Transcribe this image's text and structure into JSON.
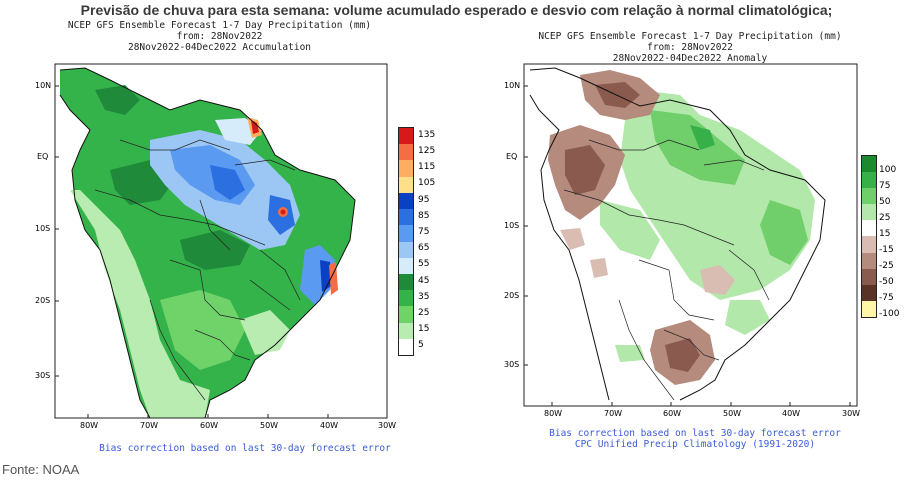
{
  "headline": "Previsão de chuva para esta semana: volume acumulado esperado e desvio com relação à normal climatológica;",
  "source": "Fonte: NOAA",
  "left_map": {
    "title_line1": "NCEP GFS Ensemble Forecast 1-7 Day Precipitation (mm)",
    "title_line2": "from: 28Nov2022",
    "title_line3": "28Nov2022-04Dec2022 Accumulation",
    "lat_labels": [
      "10N",
      "EQ",
      "10S",
      "20S",
      "30S"
    ],
    "lon_labels": [
      "80W",
      "70W",
      "60W",
      "50W",
      "40W",
      "30W"
    ],
    "legend_labels": [
      "135",
      "125",
      "115",
      "105",
      "95",
      "85",
      "75",
      "65",
      "55",
      "45",
      "35",
      "25",
      "15",
      "5"
    ],
    "legend_colors": [
      "#d7191c",
      "#f46d43",
      "#fdae61",
      "#fee08b",
      "#0b3fc4",
      "#2b6fe0",
      "#5a9af0",
      "#9cc7f5",
      "#d6ecfa",
      "#1f8a3a",
      "#34b34a",
      "#6fd36a",
      "#b8ecb0",
      "#ffffff"
    ],
    "footer": "Bias correction based on last 30-day forecast error"
  },
  "right_map": {
    "title_line1": "NCEP GFS Ensemble Forecast 1-7 Day Precipitation (mm)",
    "title_line2": "from: 28Nov2022",
    "title_line3": "28Nov2022-04Dec2022 Anomaly",
    "lat_labels": [
      "10N",
      "EQ",
      "10S",
      "20S",
      "30S"
    ],
    "lon_labels": [
      "80W",
      "70W",
      "60W",
      "50W",
      "40W",
      "30W"
    ],
    "legend_labels": [
      "100",
      "75",
      "50",
      "25",
      "15",
      "-15",
      "-25",
      "-50",
      "-75",
      "-100"
    ],
    "legend_colors": [
      "#1b8a2e",
      "#38b04a",
      "#70cf6a",
      "#b2e8aa",
      "#ffffff",
      "#d9bdb3",
      "#b58b7e",
      "#8a5a4e",
      "#5a3226",
      "#fff6a8"
    ],
    "footer_line1": "Bias correction based on last 30-day forecast error",
    "footer_line2": "CPC Unified Precip Climatology (1991-2020)"
  }
}
